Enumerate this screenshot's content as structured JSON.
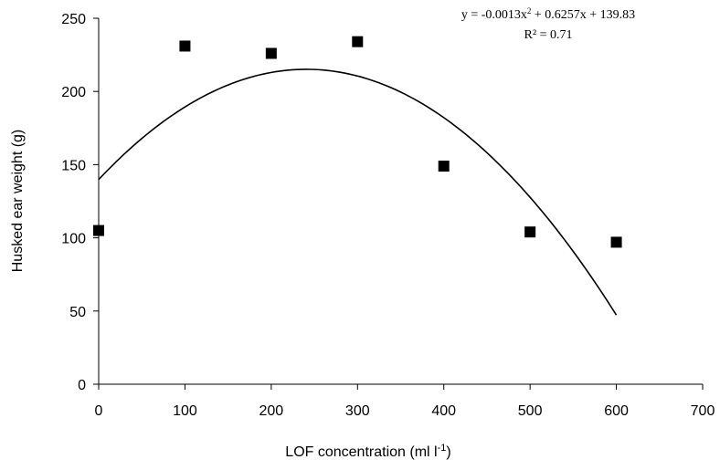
{
  "chart_data": {
    "type": "scatter",
    "title": "",
    "xlabel_main": "LOF concentration (ml l",
    "xlabel_sup": "-1",
    "xlabel_close": ")",
    "ylabel": "Husked ear weight (g)",
    "xlim": [
      0,
      700
    ],
    "ylim": [
      0,
      250
    ],
    "x_ticks": [
      0,
      100,
      200,
      300,
      400,
      500,
      600,
      700
    ],
    "y_ticks": [
      0,
      50,
      100,
      150,
      200,
      250
    ],
    "x_tick_labels": [
      "0",
      "100",
      "200",
      "300",
      "400",
      "500",
      "600",
      "700"
    ],
    "y_tick_labels": [
      "0",
      "50",
      "100",
      "150",
      "200",
      "250"
    ],
    "grid": false,
    "series": [
      {
        "x": [
          0,
          100,
          200,
          300,
          400,
          500,
          600
        ],
        "y": [
          105,
          231,
          226,
          234,
          149,
          104,
          97
        ],
        "marker": "square",
        "color": "#000000"
      }
    ],
    "trendline": {
      "type": "polynomial",
      "order": 2,
      "coefficients": {
        "a": -0.0013,
        "b": 0.6257,
        "c": 139.83
      },
      "x_range": [
        0,
        600
      ],
      "color": "#000000"
    },
    "annotations": {
      "equation_main": "y = -0.0013x",
      "equation_sup": "2",
      "equation_rest": " + 0.6257x + 139.83",
      "r_squared": "R² = 0.71"
    }
  }
}
